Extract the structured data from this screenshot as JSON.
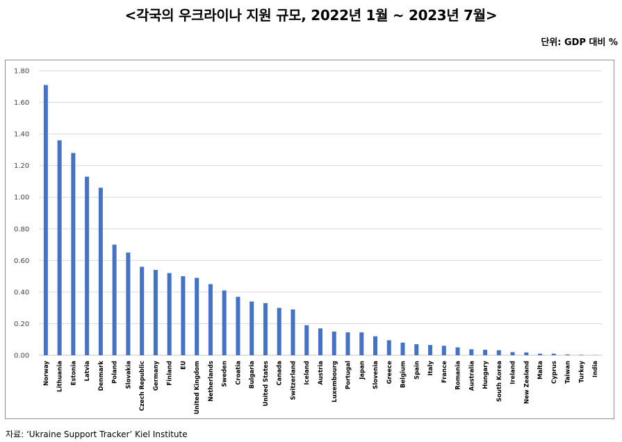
{
  "page": {
    "title": "<각국의 우크라이나 지원 규모, 2022년 1월 ~ 2023년 7월>",
    "unit_label": "단위: GDP 대비 %",
    "source": "자료: ‘Ukraine Support Tracker’ Kiel Institute"
  },
  "chart_data": {
    "type": "bar",
    "title": "<각국의 우크라이나 지원 규모, 2022년 1월 ~ 2023년 7월>",
    "ylabel": "",
    "xlabel": "",
    "ylim": [
      0,
      1.8
    ],
    "yticks": [
      "0.00",
      "0.20",
      "0.40",
      "0.60",
      "0.80",
      "1.00",
      "1.20",
      "1.40",
      "1.60",
      "1.80"
    ],
    "grid": true,
    "bar_color": "#4472C4",
    "categories": [
      "Norway",
      "Lithuania",
      "Estonia",
      "Latvia",
      "Denmark",
      "Poland",
      "Slovakia",
      "Czech Republic",
      "Germany",
      "Finland",
      "EU",
      "United Kingdom",
      "Netherlands",
      "Sweden",
      "Croatia",
      "Bulgaria",
      "United States",
      "Canada",
      "Switzerland",
      "Iceland",
      "Austria",
      "Luxembourg",
      "Portugal",
      "Japan",
      "Slovenia",
      "Greece",
      "Belgium",
      "Spain",
      "Italy",
      "France",
      "Romania",
      "Australia",
      "Hungary",
      "South Korea",
      "Ireland",
      "New Zealand",
      "Malta",
      "Cyprus",
      "Taiwan",
      "Turkey",
      "India"
    ],
    "values": [
      1.71,
      1.36,
      1.28,
      1.13,
      1.06,
      0.7,
      0.65,
      0.56,
      0.54,
      0.52,
      0.5,
      0.49,
      0.45,
      0.41,
      0.37,
      0.34,
      0.33,
      0.3,
      0.29,
      0.19,
      0.17,
      0.15,
      0.145,
      0.145,
      0.12,
      0.095,
      0.08,
      0.07,
      0.065,
      0.06,
      0.05,
      0.038,
      0.035,
      0.032,
      0.02,
      0.018,
      0.01,
      0.01,
      0.005,
      0.003,
      0.001
    ]
  }
}
